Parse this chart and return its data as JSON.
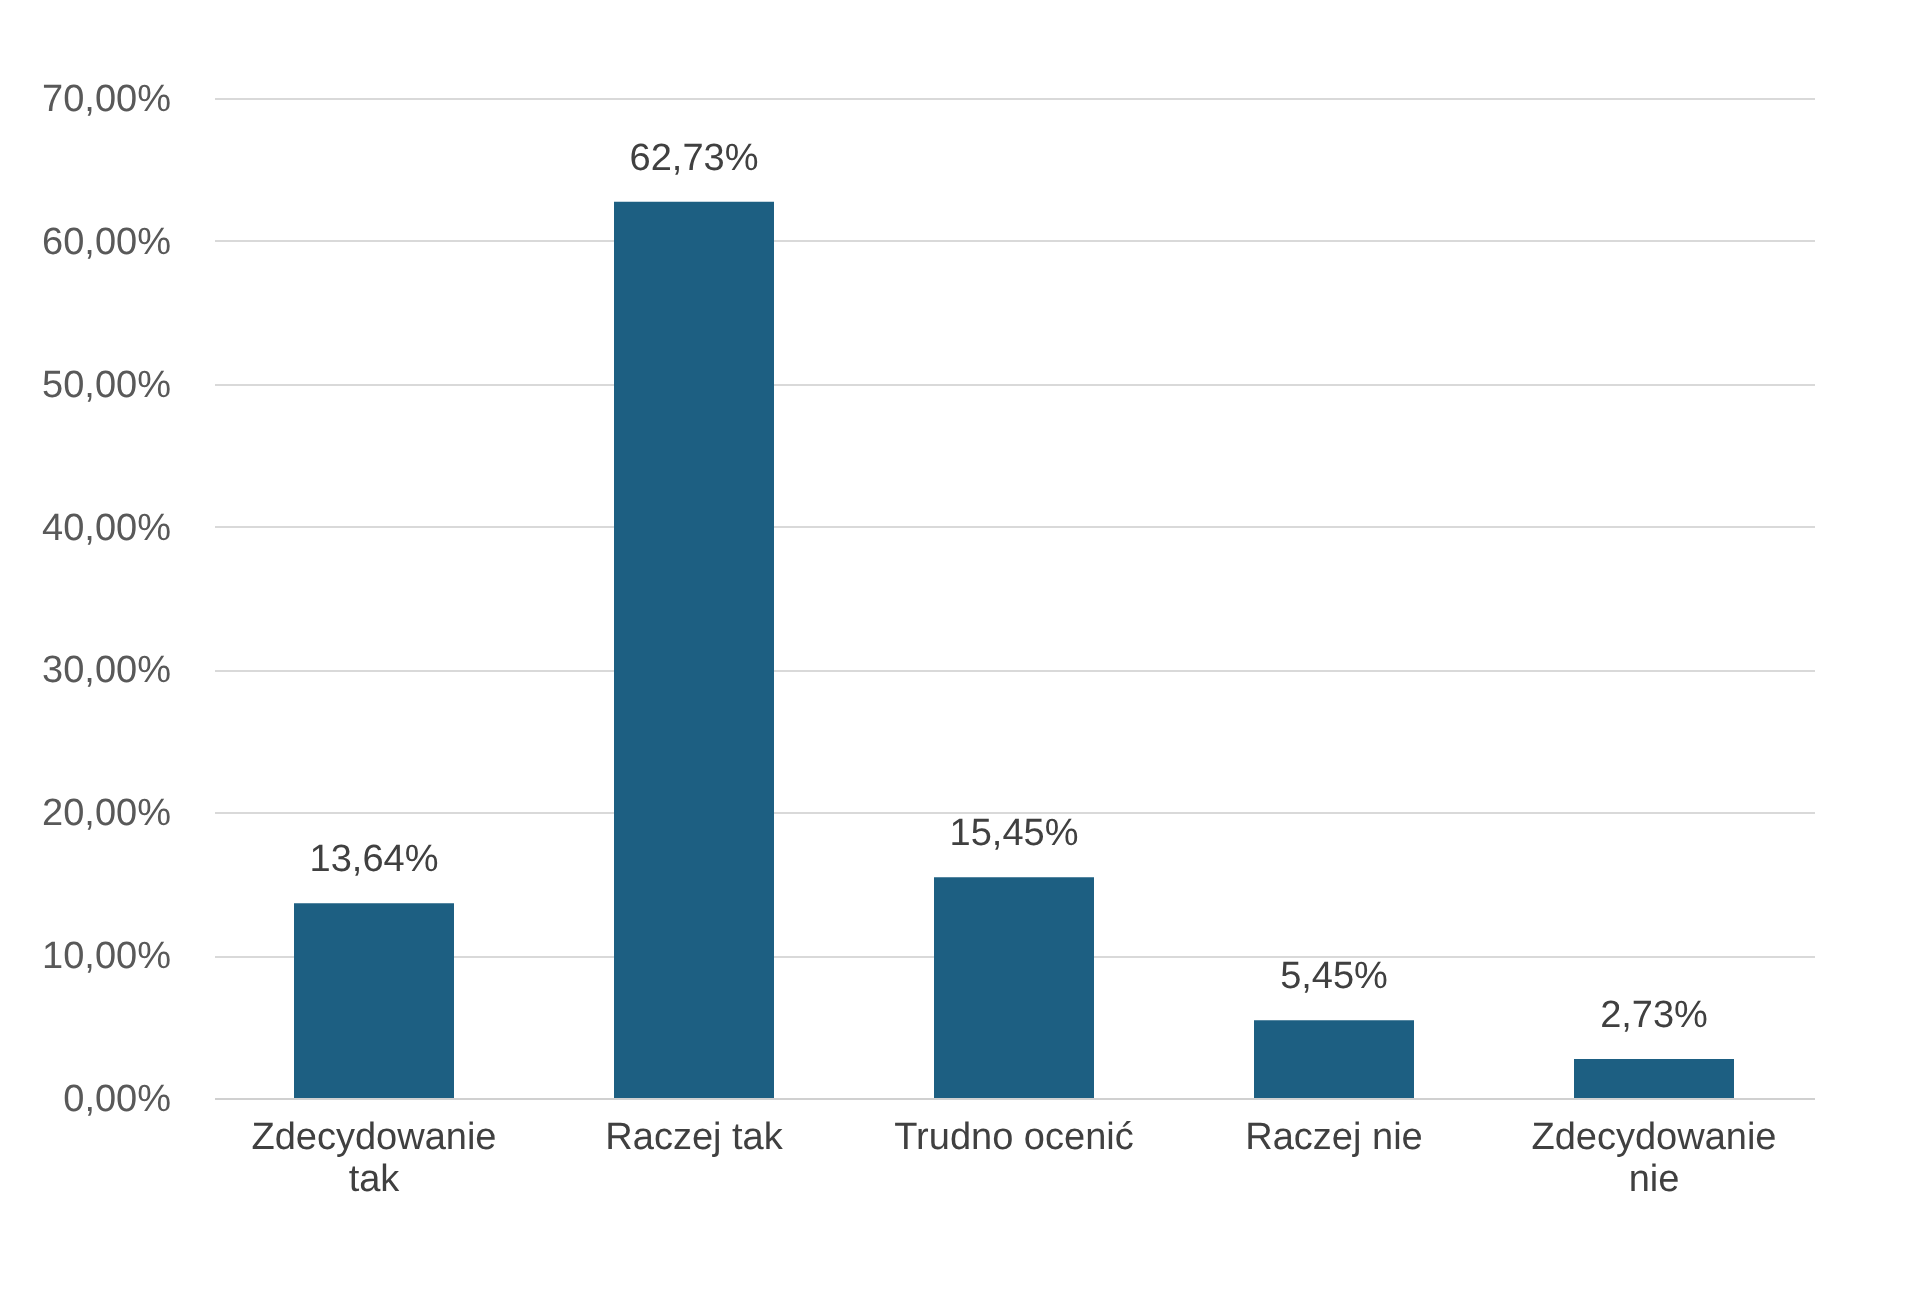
{
  "chart_data": {
    "type": "bar",
    "categories": [
      "Zdecydowanie tak",
      "Raczej tak",
      "Trudno ocenić",
      "Raczej nie",
      "Zdecydowanie nie"
    ],
    "values": [
      13.64,
      62.73,
      15.45,
      5.45,
      2.73
    ],
    "value_labels": [
      "13,64%",
      "62,73%",
      "15,45%",
      "5,45%",
      "2,73%"
    ],
    "color": "#1d5f82",
    "ylim": [
      0,
      70
    ],
    "yticks": [
      {
        "value": 0,
        "label": "0,00%"
      },
      {
        "value": 10,
        "label": "10,00%"
      },
      {
        "value": 20,
        "label": "20,00%"
      },
      {
        "value": 30,
        "label": "30,00%"
      },
      {
        "value": 40,
        "label": "40,00%"
      },
      {
        "value": 50,
        "label": "50,00%"
      },
      {
        "value": 60,
        "label": "60,00%"
      },
      {
        "value": 70,
        "label": "70,00%"
      }
    ],
    "grid": "y"
  }
}
